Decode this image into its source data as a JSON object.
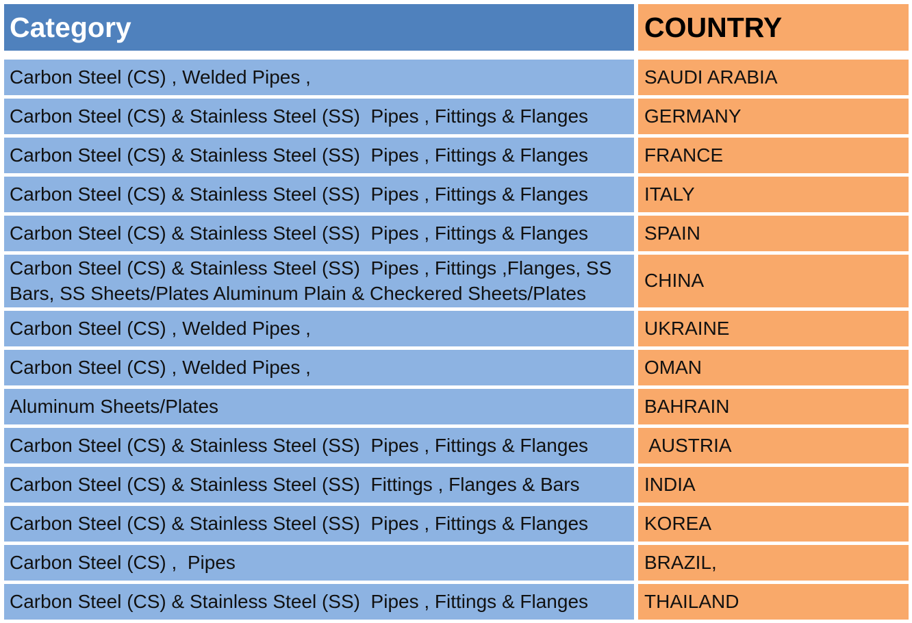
{
  "header": {
    "category_label": "Category",
    "country_label": "COUNTRY"
  },
  "rows": [
    {
      "category": "Carbon Steel (CS) , Welded Pipes ,",
      "country": "SAUDI ARABIA"
    },
    {
      "category": "Carbon Steel (CS) & Stainless Steel (SS)  Pipes , Fittings & Flanges",
      "country": "GERMANY"
    },
    {
      "category": "Carbon Steel (CS) & Stainless Steel (SS)  Pipes , Fittings & Flanges",
      "country": "FRANCE"
    },
    {
      "category": "Carbon Steel (CS) & Stainless Steel (SS)  Pipes , Fittings & Flanges",
      "country": "ITALY"
    },
    {
      "category": "Carbon Steel (CS) & Stainless Steel (SS)  Pipes , Fittings & Flanges",
      "country": "SPAIN"
    },
    {
      "category": "Carbon Steel (CS) & Stainless Steel (SS)  Pipes , Fittings ,Flanges, SS\nBars, SS Sheets/Plates Aluminum Plain & Checkered Sheets/Plates",
      "country": "CHINA"
    },
    {
      "category": "Carbon Steel (CS) , Welded Pipes ,",
      "country": "UKRAINE"
    },
    {
      "category": "Carbon Steel (CS) , Welded Pipes ,",
      "country": "OMAN"
    },
    {
      "category": "Aluminum Sheets/Plates",
      "country": "BAHRAIN"
    },
    {
      "category": "Carbon Steel (CS) & Stainless Steel (SS)  Pipes , Fittings & Flanges",
      "country": " AUSTRIA"
    },
    {
      "category": "Carbon Steel (CS) & Stainless Steel (SS)  Fittings , Flanges & Bars",
      "country": "INDIA"
    },
    {
      "category": "Carbon Steel (CS) & Stainless Steel (SS)  Pipes , Fittings & Flanges",
      "country": "KOREA"
    },
    {
      "category": "Carbon Steel (CS) ,  Pipes",
      "country": "BRAZIL,"
    },
    {
      "category": "Carbon Steel (CS) & Stainless Steel (SS)  Pipes , Fittings & Flanges",
      "country": "THAILAND"
    }
  ],
  "colors": {
    "header_category_bg": "#4f81bd",
    "category_bg": "#8db3e2",
    "country_bg": "#f9a96a"
  }
}
